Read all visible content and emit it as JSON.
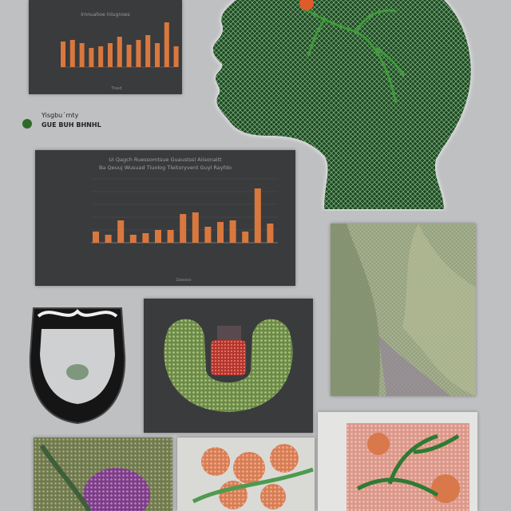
{
  "caption": {
    "line1": "Yisgbu´rnty",
    "line2": "GUE BUH BHNHL",
    "dot_color": "#2f6a2a"
  },
  "chart_top": {
    "title": "Irnnuahoe Inlugnoes",
    "xlabel": "Trasd"
  },
  "chart_main": {
    "title_line1": "Ui Qagch Ruessomtsue Guaustssl Aiisonaitt",
    "title_line2": "Ba Qeuuj Wusuad Tiuolog Tleitoryvent Guyl Rayfdo",
    "xlabel": "Gwaoss"
  },
  "colors": {
    "bar": "#d9783e",
    "panel_bg": "#3a3b3d",
    "head_green": "#2f6a2a",
    "page_bg": "#bfc0c2"
  }
}
